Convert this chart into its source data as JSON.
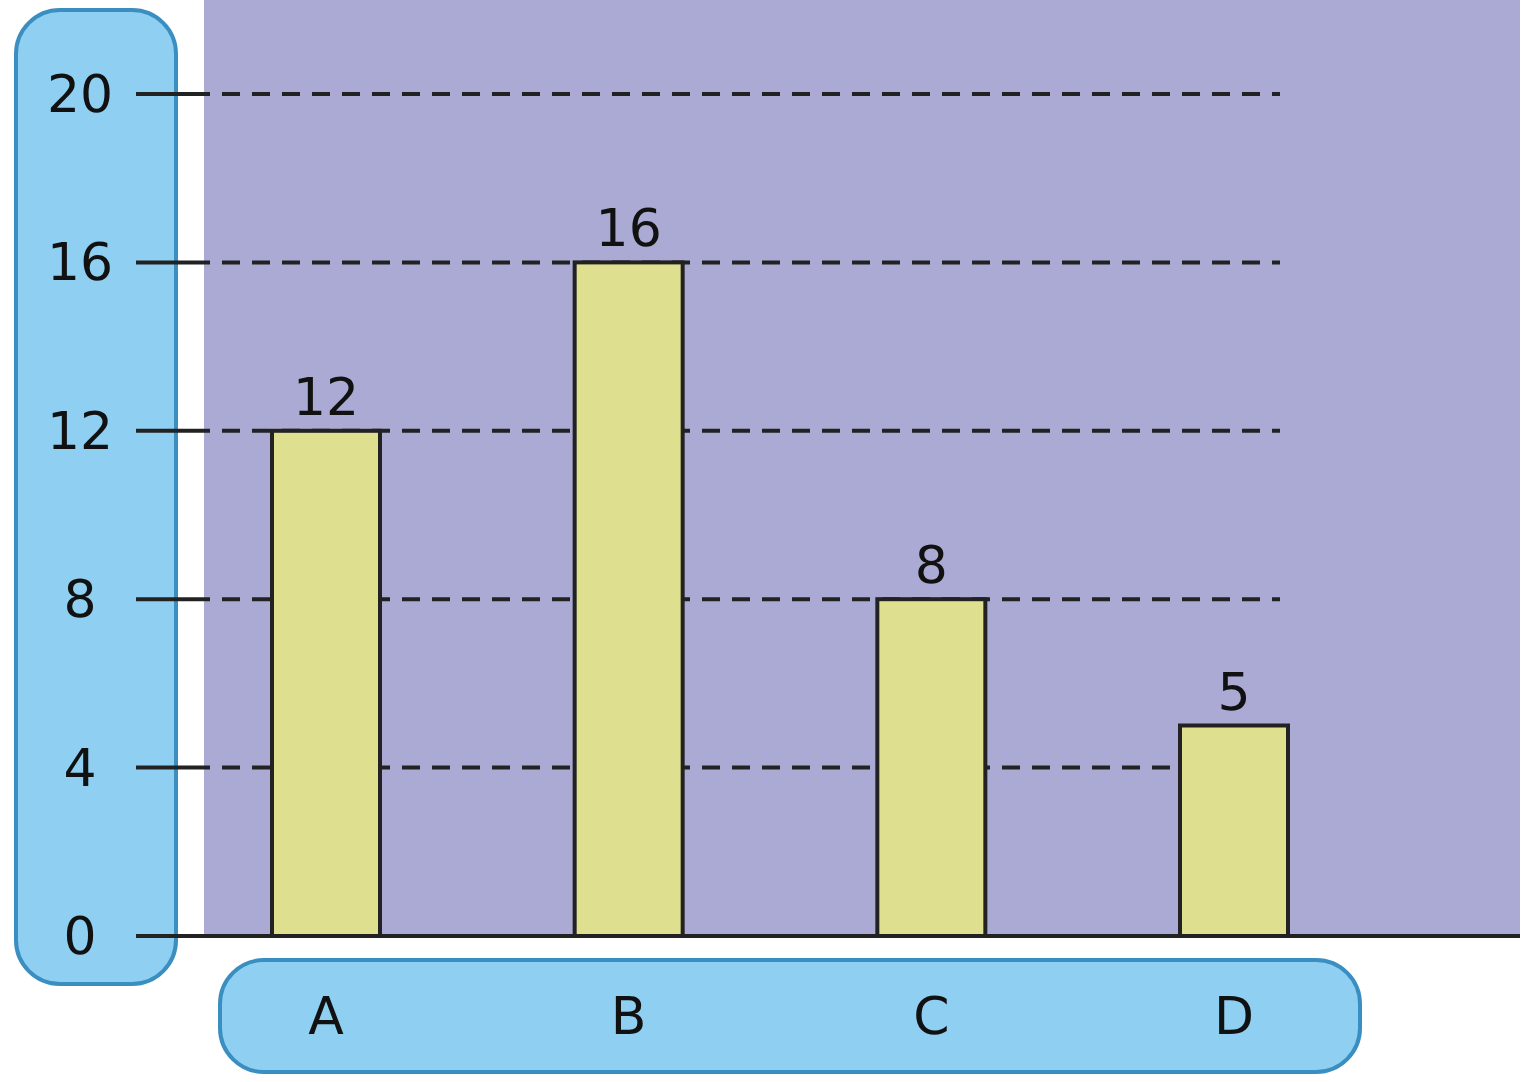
{
  "chart_data": {
    "type": "bar",
    "categories": [
      "A",
      "B",
      "C",
      "D"
    ],
    "values": [
      12,
      16,
      8,
      5
    ],
    "color": "#dfe08f",
    "ylim": [
      0,
      20
    ],
    "yticks": [
      0,
      4,
      8,
      12,
      16,
      20
    ],
    "grid": "y",
    "data_labels": true
  }
}
